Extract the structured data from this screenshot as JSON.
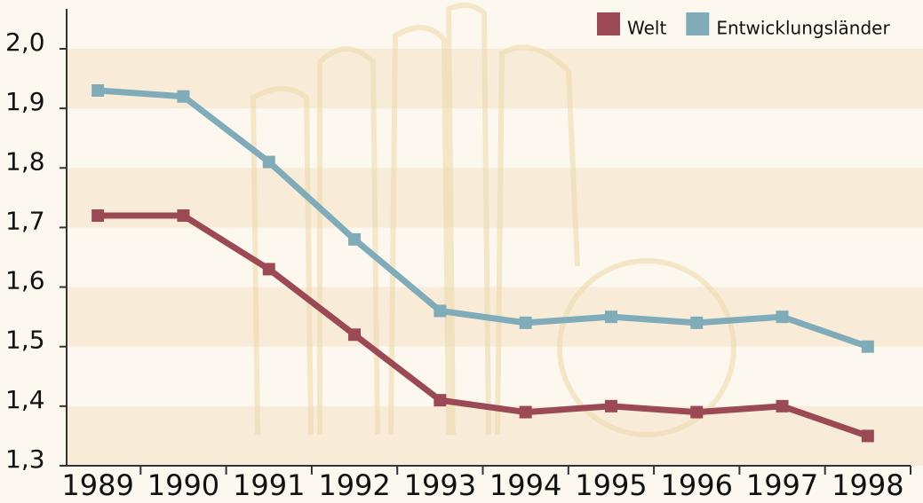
{
  "chart_data": {
    "type": "line",
    "categories": [
      "1989",
      "1990",
      "1991",
      "1992",
      "1993",
      "1994",
      "1995",
      "1996",
      "1997",
      "1998"
    ],
    "series": [
      {
        "name": "Welt",
        "color": "#9b4a55",
        "values": [
          1.72,
          1.72,
          1.63,
          1.52,
          1.41,
          1.39,
          1.4,
          1.39,
          1.4,
          1.35
        ]
      },
      {
        "name": "Entwicklungsländer",
        "color": "#80abb9",
        "values": [
          1.93,
          1.92,
          1.81,
          1.68,
          1.56,
          1.54,
          1.55,
          1.54,
          1.55,
          1.5
        ]
      }
    ],
    "ylim": [
      1.3,
      2.0
    ],
    "yticks": [
      {
        "value": 1.3,
        "label": "1,3"
      },
      {
        "value": 1.4,
        "label": "1,4"
      },
      {
        "value": 1.5,
        "label": "1,5"
      },
      {
        "value": 1.6,
        "label": "1,6"
      },
      {
        "value": 1.7,
        "label": "1,7"
      },
      {
        "value": 1.8,
        "label": "1,8"
      },
      {
        "value": 1.9,
        "label": "1,9"
      },
      {
        "value": 2.0,
        "label": "2,0"
      }
    ],
    "legend": "top-right",
    "stripes": true
  }
}
